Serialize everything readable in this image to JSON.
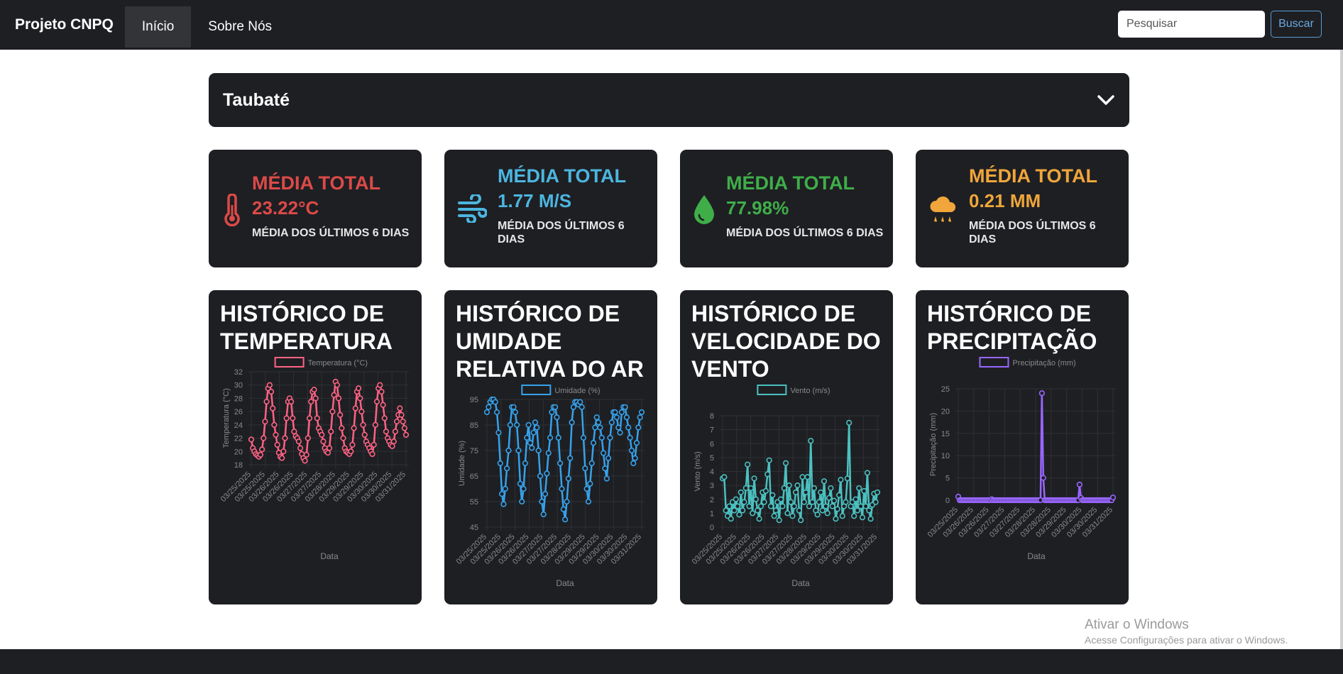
{
  "navbar": {
    "brand": "Projeto CNPQ",
    "links": [
      "Início",
      "Sobre Nós"
    ],
    "search_placeholder": "Pesquisar",
    "search_button": "Buscar"
  },
  "city_selector": {
    "selected": "Taubaté"
  },
  "stats": [
    {
      "title": "MÉDIA TOTAL",
      "value": "23.22°C",
      "subtitle": "MÉDIA DOS ÚLTIMOS 6 DIAS",
      "color": "#dc4a48",
      "icon": "thermometer-icon"
    },
    {
      "title": "MÉDIA TOTAL",
      "value": "1.77 M/S",
      "subtitle": "MÉDIA DOS ÚLTIMOS 6 DIAS",
      "color": "#4cb6e0",
      "icon": "wind-icon"
    },
    {
      "title": "MÉDIA TOTAL",
      "value": "77.98%",
      "subtitle": "MÉDIA DOS ÚLTIMOS 6 DIAS",
      "color": "#3fae49",
      "icon": "droplet-icon"
    },
    {
      "title": "MÉDIA TOTAL",
      "value": "0.21 MM",
      "subtitle": "MÉDIA DOS ÚLTIMOS 6 DIAS",
      "color": "#f0a63a",
      "icon": "cloud-rain-icon"
    }
  ],
  "chart_data": [
    {
      "type": "line",
      "title": "HISTÓRICO DE TEMPERATURA",
      "legend": "Temperatura (°C)",
      "xlabel": "Data",
      "ylabel": "Temperatura (°C)",
      "ylim": [
        18,
        32
      ],
      "yticks": [
        18,
        20,
        22,
        24,
        26,
        28,
        30,
        32
      ],
      "color": "#ff6384",
      "xtick_labels": [
        "03/25/2025",
        "03/25/2025",
        "03/26/2025",
        "03/26/2025",
        "03/27/2025",
        "03/27/2025",
        "03/28/2025",
        "03/29/2025",
        "03/29/2025",
        "03/30/2025",
        "03/30/2025",
        "03/31/2025"
      ],
      "values": [
        21.8,
        20.5,
        20,
        19.6,
        19.4,
        19.2,
        19.5,
        20.3,
        22,
        24.5,
        27.5,
        29.5,
        30,
        29,
        26.5,
        24,
        22.5,
        21,
        19.8,
        19.2,
        19,
        20,
        22,
        25,
        27.5,
        28,
        27.5,
        25,
        23,
        22.3,
        22,
        21.5,
        20.5,
        19.6,
        19,
        18.6,
        19.5,
        22,
        25,
        27.5,
        29,
        29.3,
        28,
        25,
        23.5,
        23,
        22.5,
        21.5,
        20.5,
        20,
        19.8,
        20.5,
        23,
        26,
        28.5,
        30.5,
        30,
        28,
        25.5,
        23.5,
        22,
        20.5,
        20,
        19.8,
        19.6,
        20,
        21,
        23.5,
        26.5,
        29,
        29.5,
        28,
        26,
        24,
        22.5,
        21.5,
        21,
        20.5,
        20,
        19.6,
        21,
        24,
        27.5,
        29.5,
        30,
        29,
        27,
        25,
        23,
        22,
        21.5,
        21,
        20.8,
        21.5,
        23,
        24.5,
        25.5,
        26.5,
        25.5,
        24.5,
        23.5,
        22.5
      ]
    },
    {
      "type": "line",
      "title": "HISTÓRICO DE UMIDADE RELATIVA DO AR",
      "legend": "Umidade (%)",
      "xlabel": "Data",
      "ylabel": "Umidade (%)",
      "ylim": [
        45,
        95
      ],
      "yticks": [
        45,
        55,
        65,
        75,
        85,
        95
      ],
      "color": "#36a2eb",
      "xtick_labels": [
        "03/25/2025",
        "03/25/2025",
        "03/26/2025",
        "03/26/2025",
        "03/27/2025",
        "03/27/2025",
        "03/28/2025",
        "03/29/2025",
        "03/29/2025",
        "03/30/2025",
        "03/30/2025",
        "03/31/2025"
      ],
      "values": [
        90,
        92,
        94,
        95,
        95,
        94,
        90,
        82,
        70,
        58,
        54,
        60,
        68,
        75,
        85,
        92,
        92,
        90,
        85,
        75,
        62,
        55,
        60,
        70,
        80,
        85,
        78,
        76,
        82,
        86,
        84,
        75,
        65,
        55,
        50,
        58,
        66,
        74,
        80,
        90,
        92,
        92,
        88,
        80,
        70,
        60,
        52,
        48,
        55,
        64,
        72,
        86,
        92,
        94,
        94,
        93,
        94,
        92,
        80,
        68,
        60,
        55,
        62,
        70,
        78,
        84,
        88,
        86,
        84,
        80,
        74,
        68,
        64,
        72,
        80,
        86,
        90,
        90,
        88,
        84,
        82,
        90,
        92,
        92,
        88,
        84,
        80,
        75,
        70,
        72,
        78,
        84,
        88,
        90
      ]
    },
    {
      "type": "line",
      "title": "HISTÓRICO DE VELOCIDADE DO VENTO",
      "legend": "Vento (m/s)",
      "xlabel": "Data",
      "ylabel": "Vento (m/s)",
      "ylim": [
        0,
        8
      ],
      "yticks": [
        0,
        1,
        2,
        3,
        4,
        5,
        6,
        7,
        8
      ],
      "color": "#4bc0c0",
      "xtick_labels": [
        "03/25/2025",
        "03/25/2025",
        "03/26/2025",
        "03/26/2025",
        "03/27/2025",
        "03/27/2025",
        "03/28/2025",
        "03/29/2025",
        "03/29/2025",
        "03/30/2025",
        "03/30/2025",
        "03/31/2025"
      ],
      "values": [
        3.5,
        3.6,
        1.2,
        0.8,
        1.5,
        0.6,
        1.8,
        1.2,
        2,
        1.5,
        0.9,
        2.5,
        1.2,
        1.8,
        2.8,
        4.5,
        1.5,
        2.8,
        1,
        3.5,
        2,
        1.2,
        0.6,
        1.5,
        2.5,
        1.8,
        2.6,
        3.8,
        4.8,
        1.5,
        2.3,
        0.8,
        1.2,
        1.8,
        0.5,
        2,
        1.5,
        2.8,
        4.6,
        1,
        3,
        1.8,
        0.8,
        1.5,
        2.5,
        3,
        1.2,
        0.5,
        3.6,
        1.8,
        2.5,
        3.6,
        1.5,
        6.2,
        1.8,
        2.8,
        1.2,
        0.9,
        1.8,
        2.5,
        1.2,
        3.3,
        1.5,
        1,
        2.1,
        2.8,
        1.5,
        1.9,
        0.6,
        1.3,
        2.3,
        3.4,
        0.8,
        1.5,
        1.8,
        3.5,
        7.5,
        1.5,
        1.8,
        0.8,
        2,
        1.2,
        2.8,
        1.5,
        0.7,
        2.6,
        1.5,
        3.9,
        1.2,
        0.6,
        1.6,
        2.4,
        1.8,
        2.5
      ]
    },
    {
      "type": "line",
      "title": "HISTÓRICO DE PRECIPITAÇÃO",
      "legend": "Precipitação (mm)",
      "xlabel": "Data",
      "ylabel": "Precipitação (mm)",
      "ylim": [
        0,
        25
      ],
      "yticks": [
        0,
        5,
        10,
        15,
        20,
        25
      ],
      "color": "#9966ff",
      "xtick_labels": [
        "03/25/2025",
        "03/26/2025",
        "03/26/2025",
        "03/27/2025",
        "03/27/2025",
        "03/28/2025",
        "03/28/2025",
        "03/29/2025",
        "03/30/2025",
        "03/30/2025",
        "03/31/2025"
      ],
      "values": [
        0.8,
        0,
        0,
        0,
        0,
        0,
        0,
        0,
        0,
        0,
        0,
        0,
        0,
        0,
        0,
        0,
        0,
        0,
        0,
        0,
        0,
        0,
        0,
        0,
        0.2,
        0,
        0,
        0,
        0,
        0,
        0,
        0,
        0,
        0,
        0,
        0,
        0,
        0,
        0,
        0,
        0,
        0,
        0,
        0,
        0,
        0,
        0,
        0,
        0,
        0,
        0,
        0,
        0,
        0,
        0,
        0,
        0,
        0,
        0,
        0,
        24,
        5,
        0,
        0,
        0,
        0,
        0,
        0,
        0,
        0,
        0,
        0,
        0,
        0,
        0,
        0,
        0,
        0,
        0,
        0,
        0,
        0,
        0,
        0,
        0,
        0,
        0,
        3.5,
        0.5,
        0,
        0,
        0,
        0,
        0,
        0,
        0,
        0,
        0,
        0,
        0,
        0,
        0,
        0,
        0,
        0,
        0,
        0,
        0,
        0,
        0,
        0,
        0.6
      ]
    }
  ],
  "watermark": {
    "line1": "Ativar o Windows",
    "line2": "Acesse Configurações para ativar o Windows."
  }
}
